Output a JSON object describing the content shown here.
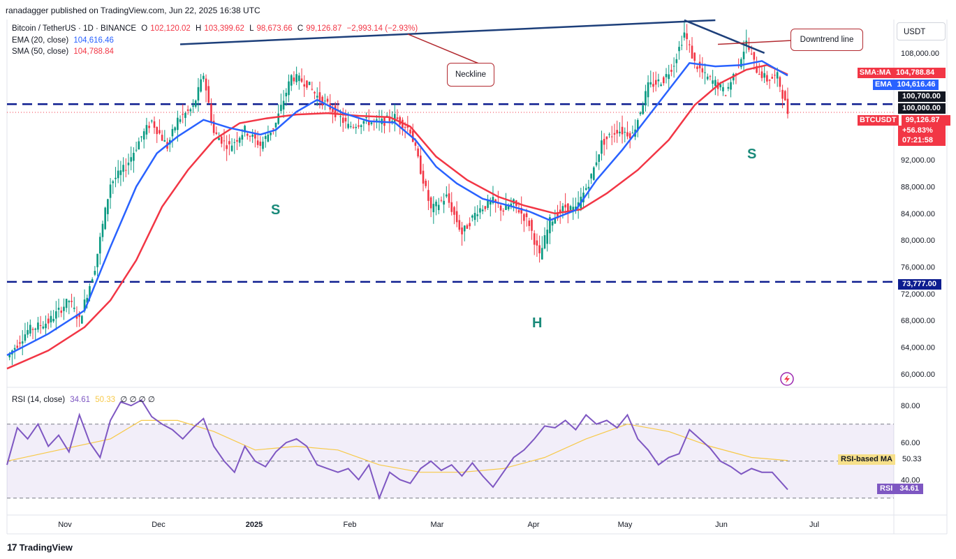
{
  "header": {
    "published": "ranadagger published on TradingView.com, Jun 22, 2025 16:38 UTC"
  },
  "legend": {
    "symbol": "Bitcoin / TetherUS · 1D · BINANCE",
    "o_key": "O",
    "o_val": "102,120.02",
    "h_key": "H",
    "h_val": "103,399.62",
    "l_key": "L",
    "l_val": "98,673.66",
    "c_key": "C",
    "c_val": "99,126.87",
    "change": "−2,993.14 (−2.93%)",
    "ema_label": "EMA (20, close)",
    "ema_val": "104,616.46",
    "sma_label": "SMA (50, close)",
    "sma_val": "104,788.84",
    "rsi_label": "RSI (14, close)",
    "rsi_val": "34.61",
    "rsi_ma_val": "50.33",
    "rsi_extra": "∅ ∅ ∅ ∅"
  },
  "currency": "USDT",
  "price_labels": {
    "sma": {
      "tag": "SMA:MA",
      "value": "104,788.84",
      "color": "#f23645"
    },
    "ema": {
      "tag": "EMA",
      "value": "104,616.46",
      "color": "#2962ff"
    },
    "l1": {
      "value": "100,700.00",
      "color": "#131722"
    },
    "l2": {
      "value": "100,000.00",
      "color": "#131722"
    },
    "last": {
      "tag": "BTCUSDT",
      "value": "99,126.87",
      "pct": "+56.83%",
      "time": "07:21:58",
      "color": "#f23645"
    },
    "support": {
      "value": "73,777.00",
      "color": "#0d1d8f"
    }
  },
  "rsi_labels": {
    "ma": {
      "tag": "RSI-based MA",
      "value": "50.33"
    },
    "rsi": {
      "tag": "RSI",
      "value": "34.61"
    }
  },
  "annotations": {
    "neckline": "Neckline",
    "downtrend": "Downtrend line",
    "s_left": "S",
    "head": "H",
    "s_right": "S"
  },
  "footer": {
    "brand": "TradingView"
  },
  "chart_data": {
    "type": "candlestick",
    "title": "Bitcoin / TetherUS · 1D · BINANCE",
    "price_axis_ticks": [
      "108,000.00",
      "92,000.00",
      "88,000.00",
      "84,000.00",
      "80,000.00",
      "76,000.00",
      "72,000.00",
      "68,000.00",
      "64,000.00",
      "60,000.00"
    ],
    "price_axis_values": [
      108000,
      92000,
      88000,
      84000,
      80000,
      76000,
      72000,
      68000,
      64000,
      60000
    ],
    "time_axis_ticks": [
      "Nov",
      "Dec",
      "2025",
      "Feb",
      "Mar",
      "Apr",
      "May",
      "Jun",
      "Jul"
    ],
    "rsi_axis_ticks": [
      "80.00",
      "60.00",
      "40.00"
    ],
    "rsi_axis_values": [
      80,
      60,
      40
    ],
    "ylim": [
      58000,
      113000
    ],
    "rsi_ylim": [
      22,
      88
    ],
    "horizontal_levels": [
      {
        "name": "Neckline zone",
        "value": 100350,
        "style": "dashed",
        "color": "#0d1d8f"
      },
      {
        "name": "Support",
        "value": 73777,
        "style": "dashed",
        "color": "#0d1d8f"
      }
    ],
    "rsi_bands": [
      70,
      50,
      30
    ],
    "price_path": [
      [
        0,
        62500
      ],
      [
        8,
        66500
      ],
      [
        16,
        67800
      ],
      [
        24,
        71000
      ],
      [
        28,
        68000
      ],
      [
        34,
        76000
      ],
      [
        40,
        88500
      ],
      [
        46,
        91000
      ],
      [
        52,
        95500
      ],
      [
        56,
        97800
      ],
      [
        62,
        94000
      ],
      [
        66,
        98000
      ],
      [
        72,
        99800
      ],
      [
        76,
        104800
      ],
      [
        80,
        96000
      ],
      [
        86,
        94000
      ],
      [
        92,
        96500
      ],
      [
        98,
        94200
      ],
      [
        104,
        97500
      ],
      [
        110,
        104500
      ],
      [
        116,
        103500
      ],
      [
        120,
        101500
      ],
      [
        126,
        99500
      ],
      [
        132,
        97000
      ],
      [
        138,
        97800
      ],
      [
        144,
        97500
      ],
      [
        150,
        98400
      ],
      [
        156,
        96500
      ],
      [
        160,
        90500
      ],
      [
        164,
        84500
      ],
      [
        170,
        86500
      ],
      [
        176,
        81000
      ],
      [
        182,
        84500
      ],
      [
        188,
        85800
      ],
      [
        192,
        84500
      ],
      [
        196,
        85500
      ],
      [
        202,
        82500
      ],
      [
        206,
        77500
      ],
      [
        210,
        82800
      ],
      [
        216,
        85000
      ],
      [
        220,
        84500
      ],
      [
        226,
        89500
      ],
      [
        230,
        94500
      ],
      [
        236,
        96500
      ],
      [
        242,
        95800
      ],
      [
        248,
        103000
      ],
      [
        254,
        104000
      ],
      [
        258,
        106500
      ],
      [
        262,
        111000
      ],
      [
        266,
        106500
      ],
      [
        270,
        104500
      ],
      [
        274,
        103500
      ],
      [
        278,
        102000
      ],
      [
        282,
        105500
      ],
      [
        286,
        109500
      ],
      [
        290,
        105500
      ],
      [
        294,
        104000
      ],
      [
        298,
        104500
      ],
      [
        302,
        99126
      ]
    ],
    "ema20_path": [
      [
        0,
        62800
      ],
      [
        16,
        66000
      ],
      [
        30,
        69500
      ],
      [
        40,
        79000
      ],
      [
        50,
        88000
      ],
      [
        58,
        93000
      ],
      [
        66,
        95500
      ],
      [
        76,
        98000
      ],
      [
        86,
        96800
      ],
      [
        98,
        95800
      ],
      [
        104,
        96500
      ],
      [
        112,
        99200
      ],
      [
        120,
        101000
      ],
      [
        130,
        99000
      ],
      [
        140,
        97800
      ],
      [
        150,
        97600
      ],
      [
        158,
        95000
      ],
      [
        166,
        91000
      ],
      [
        174,
        88500
      ],
      [
        184,
        86200
      ],
      [
        194,
        85200
      ],
      [
        202,
        84300
      ],
      [
        210,
        83000
      ],
      [
        220,
        84500
      ],
      [
        228,
        89000
      ],
      [
        238,
        93500
      ],
      [
        248,
        98500
      ],
      [
        256,
        102500
      ],
      [
        264,
        106500
      ],
      [
        274,
        106000
      ],
      [
        284,
        106200
      ],
      [
        292,
        106800
      ],
      [
        302,
        104616
      ]
    ],
    "sma50_path": [
      [
        0,
        60800
      ],
      [
        16,
        63500
      ],
      [
        30,
        67000
      ],
      [
        40,
        71000
      ],
      [
        50,
        77000
      ],
      [
        60,
        85000
      ],
      [
        70,
        90500
      ],
      [
        80,
        95000
      ],
      [
        90,
        97500
      ],
      [
        100,
        98200
      ],
      [
        112,
        98800
      ],
      [
        124,
        99000
      ],
      [
        136,
        98600
      ],
      [
        148,
        98400
      ],
      [
        156,
        97000
      ],
      [
        166,
        92500
      ],
      [
        178,
        89000
      ],
      [
        190,
        86500
      ],
      [
        200,
        85200
      ],
      [
        212,
        84000
      ],
      [
        222,
        84600
      ],
      [
        232,
        87000
      ],
      [
        244,
        90500
      ],
      [
        256,
        95000
      ],
      [
        266,
        100200
      ],
      [
        276,
        103500
      ],
      [
        286,
        105500
      ],
      [
        294,
        106200
      ],
      [
        302,
        104788
      ]
    ],
    "rsi_path": [
      [
        0,
        48
      ],
      [
        4,
        68
      ],
      [
        8,
        62
      ],
      [
        12,
        70
      ],
      [
        16,
        58
      ],
      [
        20,
        64
      ],
      [
        24,
        55
      ],
      [
        28,
        75
      ],
      [
        32,
        60
      ],
      [
        36,
        52
      ],
      [
        40,
        72
      ],
      [
        44,
        82
      ],
      [
        48,
        80
      ],
      [
        52,
        83
      ],
      [
        56,
        74
      ],
      [
        60,
        70
      ],
      [
        64,
        67
      ],
      [
        68,
        62
      ],
      [
        72,
        68
      ],
      [
        76,
        73
      ],
      [
        80,
        58
      ],
      [
        84,
        50
      ],
      [
        88,
        44
      ],
      [
        92,
        58
      ],
      [
        96,
        50
      ],
      [
        100,
        47
      ],
      [
        104,
        55
      ],
      [
        108,
        60
      ],
      [
        112,
        62
      ],
      [
        116,
        58
      ],
      [
        120,
        48
      ],
      [
        124,
        46
      ],
      [
        128,
        44
      ],
      [
        132,
        46
      ],
      [
        136,
        40
      ],
      [
        140,
        48
      ],
      [
        144,
        30
      ],
      [
        148,
        44
      ],
      [
        152,
        40
      ],
      [
        156,
        38
      ],
      [
        160,
        46
      ],
      [
        164,
        50
      ],
      [
        168,
        45
      ],
      [
        172,
        48
      ],
      [
        176,
        42
      ],
      [
        180,
        49
      ],
      [
        184,
        42
      ],
      [
        188,
        36
      ],
      [
        192,
        44
      ],
      [
        196,
        52
      ],
      [
        200,
        56
      ],
      [
        204,
        62
      ],
      [
        208,
        69
      ],
      [
        212,
        68
      ],
      [
        216,
        72
      ],
      [
        220,
        67
      ],
      [
        224,
        75
      ],
      [
        228,
        70
      ],
      [
        232,
        72
      ],
      [
        236,
        68
      ],
      [
        240,
        75
      ],
      [
        244,
        62
      ],
      [
        248,
        56
      ],
      [
        252,
        48
      ],
      [
        256,
        52
      ],
      [
        260,
        54
      ],
      [
        264,
        67
      ],
      [
        268,
        62
      ],
      [
        272,
        57
      ],
      [
        276,
        50
      ],
      [
        280,
        47
      ],
      [
        284,
        43
      ],
      [
        288,
        46
      ],
      [
        292,
        44
      ],
      [
        296,
        44
      ],
      [
        302,
        34.61
      ]
    ],
    "rsi_ma_path": [
      [
        0,
        50
      ],
      [
        20,
        56
      ],
      [
        40,
        62
      ],
      [
        52,
        72
      ],
      [
        66,
        72
      ],
      [
        80,
        66
      ],
      [
        96,
        56
      ],
      [
        112,
        58
      ],
      [
        128,
        56
      ],
      [
        144,
        48
      ],
      [
        160,
        44
      ],
      [
        176,
        44
      ],
      [
        192,
        46
      ],
      [
        208,
        52
      ],
      [
        224,
        62
      ],
      [
        240,
        70
      ],
      [
        256,
        66
      ],
      [
        272,
        58
      ],
      [
        288,
        52
      ],
      [
        302,
        50.33
      ]
    ],
    "trendlines": [
      {
        "name": "Neckline",
        "from": [
          67,
          109300
        ],
        "to": [
          274,
          112900
        ]
      },
      {
        "name": "Downtrend line",
        "from": [
          262,
          112900
        ],
        "to": [
          293,
          108000
        ]
      }
    ]
  }
}
